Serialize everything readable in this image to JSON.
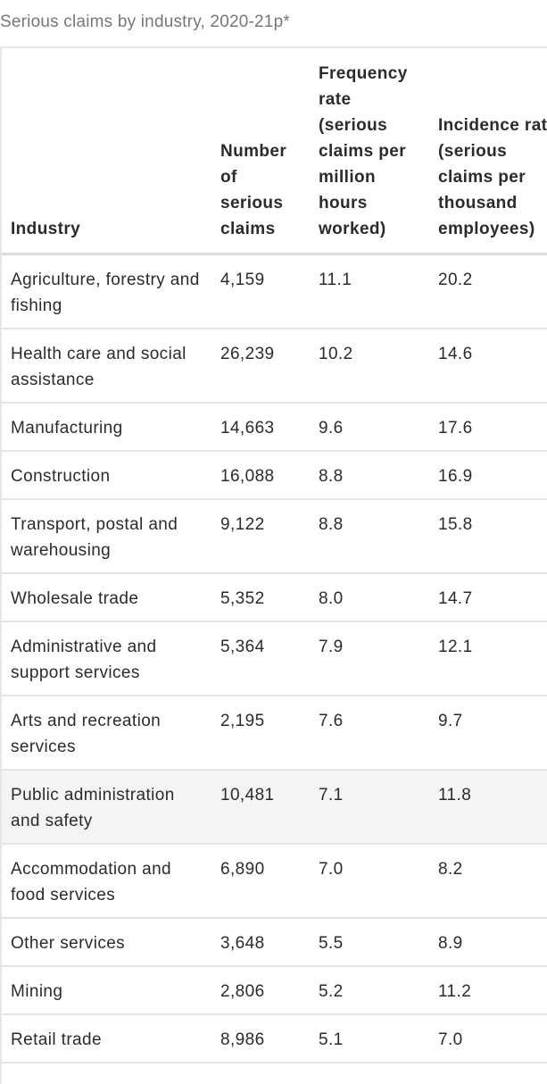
{
  "caption": "Serious claims by industry, 2020-21p*",
  "table": {
    "headers": [
      "Industry",
      "Number of serious claims",
      "Frequency rate (serious claims per million hours worked)",
      "Incidence rate (serious claims per thousand employees)"
    ],
    "rows": [
      [
        "Agriculture, forestry and fishing",
        "4,159",
        "11.1",
        "20.2"
      ],
      [
        "Health care and social assistance",
        "26,239",
        "10.2",
        "14.6"
      ],
      [
        "Manufacturing",
        "14,663",
        "9.6",
        "17.6"
      ],
      [
        "Construction",
        "16,088",
        "8.8",
        "16.9"
      ],
      [
        "Transport, postal and warehousing",
        "9,122",
        "8.8",
        "15.8"
      ],
      [
        "Wholesale trade",
        "5,352",
        "8.0",
        "14.7"
      ],
      [
        "Administrative and support services",
        "5,364",
        "7.9",
        "12.1"
      ],
      [
        "Arts and recreation services",
        "2,195",
        "7.6",
        "9.7"
      ],
      [
        "Public administration and safety",
        "10,481",
        "7.1",
        "11.8"
      ],
      [
        "Accommodation and food services",
        "6,890",
        "7.0",
        "8.2"
      ],
      [
        "Other services",
        "3,648",
        "5.5",
        "8.9"
      ],
      [
        "Mining",
        "2,806",
        "5.2",
        "11.2"
      ],
      [
        "Retail trade",
        "8,986",
        "5.1",
        "7.0"
      ]
    ],
    "highlighted_row_index": 8
  }
}
